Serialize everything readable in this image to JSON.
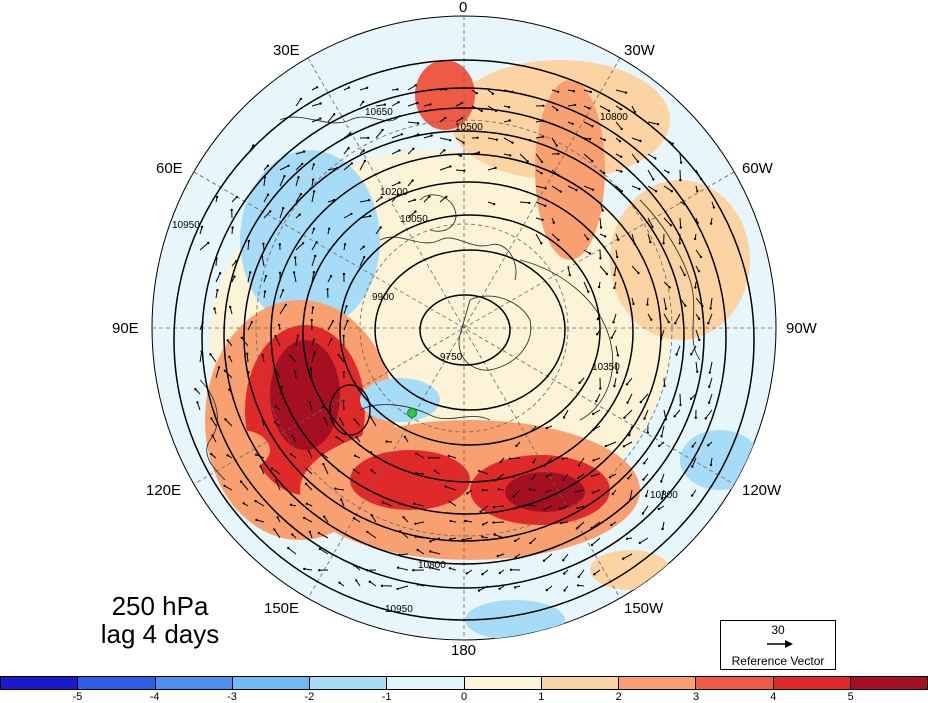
{
  "title": {
    "line1": "250 hPa",
    "line2": "lag 4 days"
  },
  "longitude_labels": {
    "top": "0",
    "bottom": "180",
    "e30": "30E",
    "e60": "60E",
    "e90": "90E",
    "e120": "120E",
    "e150": "150E",
    "w30": "30W",
    "w60": "60W",
    "w90": "90W",
    "w120": "120W",
    "w150": "150W"
  },
  "contour_labels": [
    "9750",
    "9900",
    "10050",
    "10200",
    "10350",
    "10500",
    "10650",
    "10800",
    "10950"
  ],
  "reference_vector": {
    "magnitude": "30",
    "label": "Reference Vector"
  },
  "colorbar": {
    "ticks": [
      "-5",
      "-4",
      "-3",
      "-2",
      "-1",
      "0",
      "1",
      "2",
      "3",
      "4",
      "5"
    ],
    "colors": [
      "#1a1acc",
      "#2d5fe6",
      "#4a90ee",
      "#6fbaf5",
      "#a6dcf7",
      "#dff4fb",
      "#fdf3d6",
      "#fcd3a2",
      "#f8a070",
      "#ee5a44",
      "#e02a2a",
      "#a50f22"
    ]
  },
  "map_colors": {
    "ocean_bg": "#dff4fb",
    "land_line": "#333333",
    "grid": "#555555",
    "marker": "#2ecc40"
  }
}
